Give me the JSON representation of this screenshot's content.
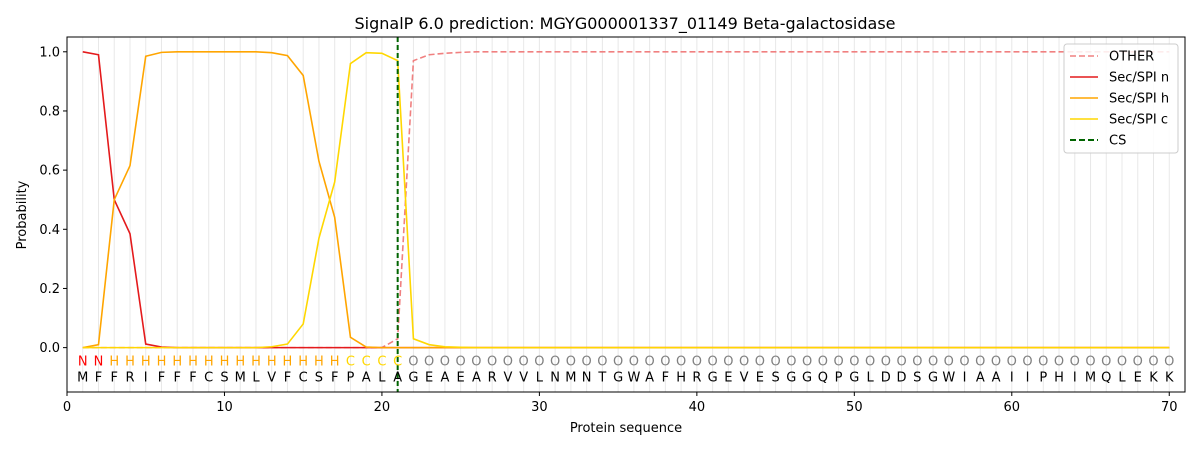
{
  "chart_data": {
    "type": "line",
    "title": "SignalP 6.0 prediction: MGYG000001337_01149 Beta-galactosidase",
    "xlabel": "Protein sequence",
    "ylabel": "Probability",
    "xlim": [
      0,
      71
    ],
    "ylim": [
      -0.15,
      1.05
    ],
    "x_ticks": [
      0,
      10,
      20,
      30,
      40,
      50,
      60,
      70
    ],
    "y_ticks": [
      0.0,
      0.2,
      0.4,
      0.6,
      0.8,
      1.0
    ],
    "x_tick_labels": [
      "0",
      "10",
      "20",
      "30",
      "40",
      "50",
      "60",
      "70"
    ],
    "y_tick_labels": [
      "0.0",
      "0.2",
      "0.4",
      "0.6",
      "0.8",
      "1.0"
    ],
    "legend_position": "top-right",
    "sequence": [
      "M",
      "F",
      "F",
      "R",
      "I",
      "F",
      "F",
      "F",
      "C",
      "S",
      "M",
      "L",
      "V",
      "F",
      "C",
      "S",
      "F",
      "P",
      "A",
      "L",
      "A",
      "G",
      "E",
      "A",
      "E",
      "A",
      "R",
      "V",
      "V",
      "L",
      "N",
      "M",
      "N",
      "T",
      "G",
      "W",
      "A",
      "F",
      "H",
      "R",
      "G",
      "E",
      "V",
      "E",
      "S",
      "G",
      "G",
      "Q",
      "P",
      "G",
      "L",
      "D",
      "D",
      "S",
      "G",
      "W",
      "I",
      "A",
      "A",
      "I",
      "I",
      "P",
      "H",
      "I",
      "M",
      "Q",
      "L",
      "E",
      "K",
      "K"
    ],
    "region_labels": [
      "N",
      "N",
      "H",
      "H",
      "H",
      "H",
      "H",
      "H",
      "H",
      "H",
      "H",
      "H",
      "H",
      "H",
      "H",
      "H",
      "H",
      "C",
      "C",
      "C",
      "C",
      "O",
      "O",
      "O",
      "O",
      "O",
      "O",
      "O",
      "O",
      "O",
      "O",
      "O",
      "O",
      "O",
      "O",
      "O",
      "O",
      "O",
      "O",
      "O",
      "O",
      "O",
      "O",
      "O",
      "O",
      "O",
      "O",
      "O",
      "O",
      "O",
      "O",
      "O",
      "O",
      "O",
      "O",
      "O",
      "O",
      "O",
      "O",
      "O",
      "O",
      "O",
      "O",
      "O",
      "O",
      "O",
      "O",
      "O",
      "O",
      "O"
    ],
    "region_colors": {
      "N": "#ff0000",
      "H": "#ffa500",
      "C": "#ffd700",
      "O": "#808080"
    },
    "cleavage_site": 21,
    "series": [
      {
        "name": "OTHER",
        "color": "#f08080",
        "dash": true,
        "values": [
          0.0,
          0.0,
          0.0,
          0.0,
          0.0,
          0.0,
          0.0,
          0.0,
          0.0,
          0.0,
          0.0,
          0.0,
          0.0,
          0.0,
          0.0,
          0.0,
          0.0,
          0.0,
          0.0,
          0.0,
          0.03,
          0.97,
          0.99,
          0.995,
          0.998,
          1.0,
          1.0,
          1.0,
          1.0,
          1.0,
          1.0,
          1.0,
          1.0,
          1.0,
          1.0,
          1.0,
          1.0,
          1.0,
          1.0,
          1.0,
          1.0,
          1.0,
          1.0,
          1.0,
          1.0,
          1.0,
          1.0,
          1.0,
          1.0,
          1.0,
          1.0,
          1.0,
          1.0,
          1.0,
          1.0,
          1.0,
          1.0,
          1.0,
          1.0,
          1.0,
          1.0,
          1.0,
          1.0,
          1.0,
          1.0,
          1.0,
          1.0,
          1.0,
          1.0,
          1.0
        ]
      },
      {
        "name": "Sec/SPI n",
        "color": "#e41a1c",
        "dash": false,
        "values": [
          1.0,
          0.99,
          0.5,
          0.385,
          0.012,
          0.002,
          0.0,
          0.0,
          0.0,
          0.0,
          0.0,
          0.0,
          0.0,
          0.0,
          0.0,
          0.0,
          0.0,
          0.0,
          0.0,
          0.0,
          0.0,
          0.0,
          0.0,
          0.0,
          0.0,
          0.0,
          0.0,
          0.0,
          0.0,
          0.0,
          0.0,
          0.0,
          0.0,
          0.0,
          0.0,
          0.0,
          0.0,
          0.0,
          0.0,
          0.0,
          0.0,
          0.0,
          0.0,
          0.0,
          0.0,
          0.0,
          0.0,
          0.0,
          0.0,
          0.0,
          0.0,
          0.0,
          0.0,
          0.0,
          0.0,
          0.0,
          0.0,
          0.0,
          0.0,
          0.0,
          0.0,
          0.0,
          0.0,
          0.0,
          0.0,
          0.0,
          0.0,
          0.0,
          0.0,
          0.0
        ]
      },
      {
        "name": "Sec/SPI h",
        "color": "#ffa500",
        "dash": false,
        "values": [
          0.0,
          0.01,
          0.5,
          0.615,
          0.985,
          0.998,
          1.0,
          1.0,
          1.0,
          1.0,
          1.0,
          1.0,
          0.997,
          0.987,
          0.92,
          0.63,
          0.44,
          0.035,
          0.002,
          0.0,
          0.0,
          0.0,
          0.0,
          0.0,
          0.0,
          0.0,
          0.0,
          0.0,
          0.0,
          0.0,
          0.0,
          0.0,
          0.0,
          0.0,
          0.0,
          0.0,
          0.0,
          0.0,
          0.0,
          0.0,
          0.0,
          0.0,
          0.0,
          0.0,
          0.0,
          0.0,
          0.0,
          0.0,
          0.0,
          0.0,
          0.0,
          0.0,
          0.0,
          0.0,
          0.0,
          0.0,
          0.0,
          0.0,
          0.0,
          0.0,
          0.0,
          0.0,
          0.0,
          0.0,
          0.0,
          0.0,
          0.0,
          0.0,
          0.0,
          0.0
        ]
      },
      {
        "name": "Sec/SPI c",
        "color": "#ffd700",
        "dash": false,
        "values": [
          0.0,
          0.0,
          0.0,
          0.0,
          0.0,
          0.0,
          0.0,
          0.0,
          0.0,
          0.0,
          0.0,
          0.0,
          0.003,
          0.012,
          0.08,
          0.37,
          0.56,
          0.96,
          0.997,
          0.995,
          0.97,
          0.03,
          0.01,
          0.003,
          0.001,
          0.0,
          0.0,
          0.0,
          0.0,
          0.0,
          0.0,
          0.0,
          0.0,
          0.0,
          0.0,
          0.0,
          0.0,
          0.0,
          0.0,
          0.0,
          0.0,
          0.0,
          0.0,
          0.0,
          0.0,
          0.0,
          0.0,
          0.0,
          0.0,
          0.0,
          0.0,
          0.0,
          0.0,
          0.0,
          0.0,
          0.0,
          0.0,
          0.0,
          0.0,
          0.0,
          0.0,
          0.0,
          0.0,
          0.0,
          0.0,
          0.0,
          0.0,
          0.0,
          0.0,
          0.0
        ]
      },
      {
        "name": "CS",
        "color": "#006400",
        "dash": true,
        "vertical": true
      }
    ]
  }
}
